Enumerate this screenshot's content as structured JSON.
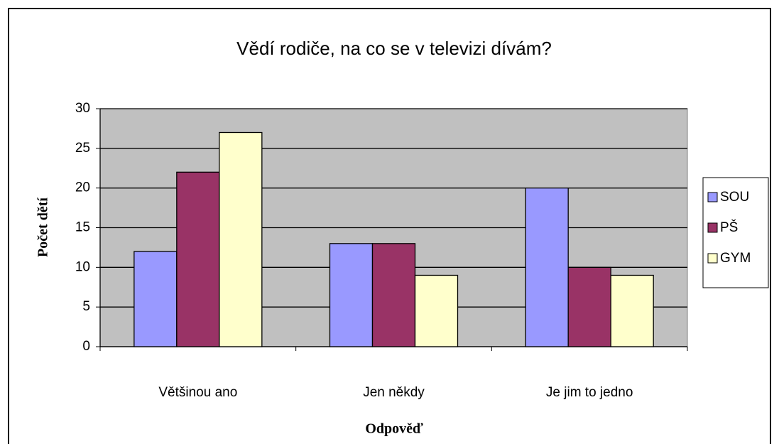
{
  "chart_data": {
    "type": "bar",
    "title": "Vědí rodiče, na co se v televizi dívám?",
    "x_label": "Odpověď",
    "y_label": "Počet dětí",
    "categories": [
      "Většinou ano",
      "Jen někdy",
      "Je jim to jedno"
    ],
    "series": [
      {
        "name": "SOU",
        "color": "#9999ff",
        "values": [
          12,
          13,
          20
        ]
      },
      {
        "name": "PŠ",
        "color": "#993366",
        "values": [
          22,
          13,
          10
        ]
      },
      {
        "name": "GYM",
        "color": "#ffffcc",
        "values": [
          27,
          9,
          9
        ]
      }
    ],
    "ylim": [
      0,
      30
    ],
    "yticks": [
      0,
      5,
      10,
      15,
      20,
      25,
      30
    ],
    "grid": true,
    "legend": "right"
  }
}
